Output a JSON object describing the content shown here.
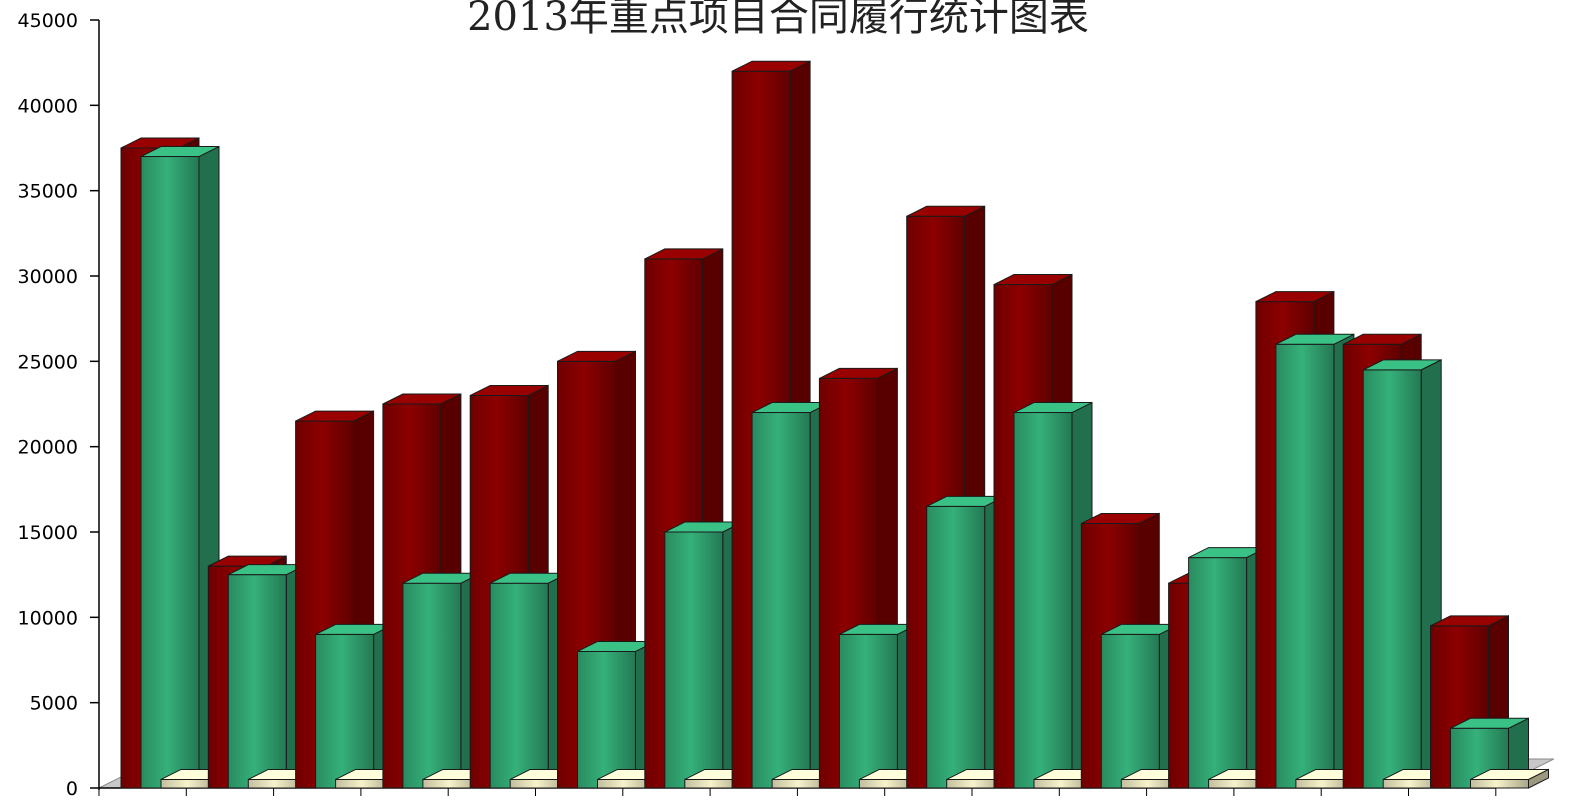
{
  "chart_data": {
    "type": "bar",
    "title": "2013年重点项目合同履行统计图表",
    "xlabel": "",
    "ylabel": "",
    "ylim": [
      0,
      45000
    ],
    "yticks": [
      0,
      5000,
      10000,
      15000,
      20000,
      25000,
      30000,
      35000,
      40000,
      45000
    ],
    "tick_labels": [
      "0",
      "5000",
      "10000",
      "15000",
      "20000",
      "25000",
      "30000",
      "35000",
      "40000",
      "45000"
    ],
    "categories": [
      "",
      "",
      "",
      "",
      "",
      "",
      "",
      "",
      "",
      "",
      "",
      "",
      "",
      "",
      "",
      ""
    ],
    "series": [
      {
        "values": [
          37500,
          13000,
          21500,
          22500,
          23000,
          25000,
          31000,
          42000,
          24000,
          33500,
          29500,
          15500,
          12000,
          28500,
          26000,
          9500
        ]
      },
      {
        "values": [
          37000,
          12500,
          9000,
          12000,
          12000,
          8000,
          15000,
          22000,
          9000,
          16500,
          22000,
          9000,
          13500,
          26000,
          24500,
          3500
        ]
      },
      {
        "values": [
          500,
          500,
          500,
          500,
          500,
          500,
          500,
          500,
          500,
          500,
          500,
          500,
          500,
          500,
          500,
          500
        ]
      }
    ],
    "style": "3d-cylinder",
    "grid": false,
    "legend": "none",
    "colors": {
      "series1": "#7a0000",
      "series2": "#2e9a6a",
      "series3": "#d8d3b0",
      "floor": "#c8c8c8",
      "axis": "#000000"
    }
  }
}
